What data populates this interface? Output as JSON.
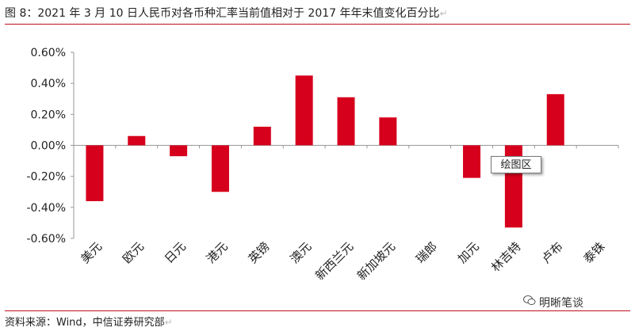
{
  "title": "图 8：2021 年 3 月 10 日人民币对各币种汇率当前值相对于 2017 年年末值变化百分比",
  "title_mark": "↵",
  "source": "资料来源：Wind，中信证券研究部",
  "source_mark": "↵",
  "watermark": "明晰笔谈",
  "tooltip": "绘图区",
  "colors": {
    "bar": "#d6001c",
    "rule": "#c0101e",
    "axis": "#999999"
  },
  "chart_data": {
    "type": "bar",
    "categories": [
      "美元",
      "欧元",
      "日元",
      "港元",
      "英镑",
      "澳元",
      "新西兰元",
      "新加坡元",
      "瑞郎",
      "加元",
      "林吉特",
      "卢布",
      "泰铢"
    ],
    "values": [
      -0.36,
      0.06,
      -0.07,
      -0.3,
      0.12,
      0.45,
      0.31,
      0.18,
      0.0,
      -0.21,
      -0.53,
      0.33,
      0.0
    ],
    "unit": "%",
    "ylim": [
      -0.6,
      0.6
    ],
    "yticks": [
      "0.60%",
      "0.40%",
      "0.20%",
      "0.00%",
      "-0.20%",
      "-0.40%",
      "-0.60%"
    ],
    "ytick_values": [
      0.6,
      0.4,
      0.2,
      0.0,
      -0.2,
      -0.4,
      -0.6
    ],
    "grid": false,
    "legend": "none"
  }
}
